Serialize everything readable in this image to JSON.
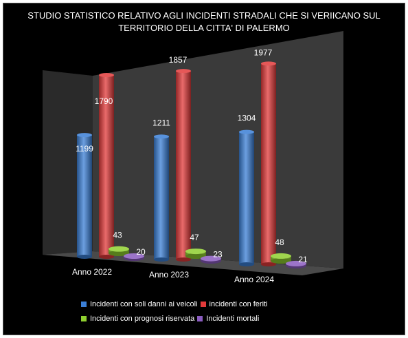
{
  "chart_data": {
    "type": "bar",
    "title_lines": [
      "STUDIO STATISTICO RELATIVO AGLI INCIDENTI STRADALI CHE SI VERIICANO SUL",
      "TERRITORIO DELLA CITTA' DI PALERMO"
    ],
    "categories": [
      "Anno 2022",
      "Anno 2023",
      "Anno 2024"
    ],
    "series": [
      {
        "name": "Incidenti con soli danni ai veicoli",
        "values": [
          1199,
          1211,
          1304
        ],
        "color": "#3b7fd6"
      },
      {
        "name": "incidenti con feriti",
        "values": [
          1790,
          1857,
          1977
        ],
        "color": "#e23a3a"
      },
      {
        "name": "Incidenti con prognosi riservata",
        "values": [
          43,
          47,
          48
        ],
        "color": "#8fcf2f"
      },
      {
        "name": "Incidenti mortali",
        "values": [
          20,
          23,
          21
        ],
        "color": "#8a5cc0"
      }
    ],
    "ylim": [
      0,
      2000
    ],
    "legend_position": "bottom",
    "grid": false,
    "three_d": true
  }
}
